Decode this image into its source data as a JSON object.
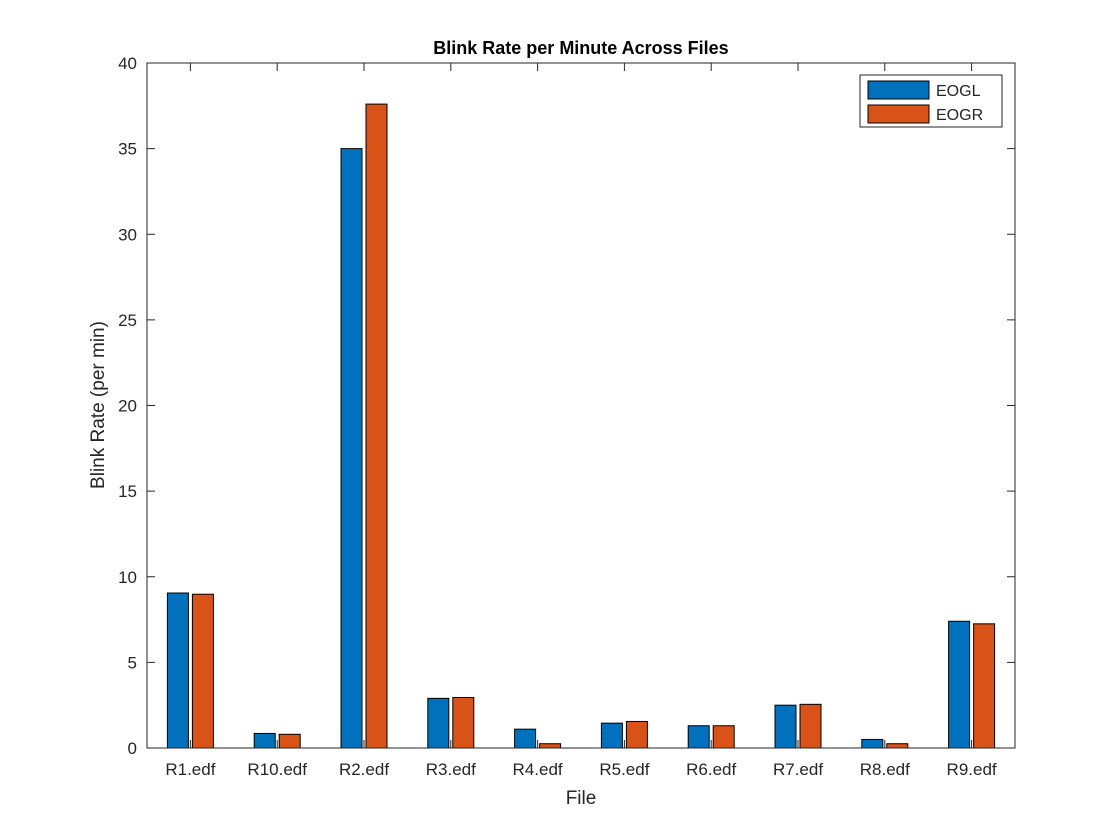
{
  "chart_data": {
    "type": "bar",
    "title": "Blink Rate per Minute Across Files",
    "xlabel": "File",
    "ylabel": "Blink Rate (per min)",
    "categories": [
      "R1.edf",
      "R10.edf",
      "R2.edf",
      "R3.edf",
      "R4.edf",
      "R5.edf",
      "R6.edf",
      "R7.edf",
      "R8.edf",
      "R9.edf"
    ],
    "series": [
      {
        "name": "EOGL",
        "color": "#0072BD",
        "values": [
          9.05,
          0.85,
          35.0,
          2.9,
          1.1,
          1.45,
          1.3,
          2.5,
          0.5,
          7.4
        ]
      },
      {
        "name": "EOGR",
        "color": "#D95319",
        "values": [
          8.98,
          0.8,
          37.6,
          2.95,
          0.25,
          1.55,
          1.3,
          2.55,
          0.25,
          7.25
        ]
      }
    ],
    "ylim": [
      0,
      40
    ],
    "yticks": [
      0,
      5,
      10,
      15,
      20,
      25,
      30,
      35,
      40
    ],
    "grid": false,
    "legend_position": "top-right"
  }
}
